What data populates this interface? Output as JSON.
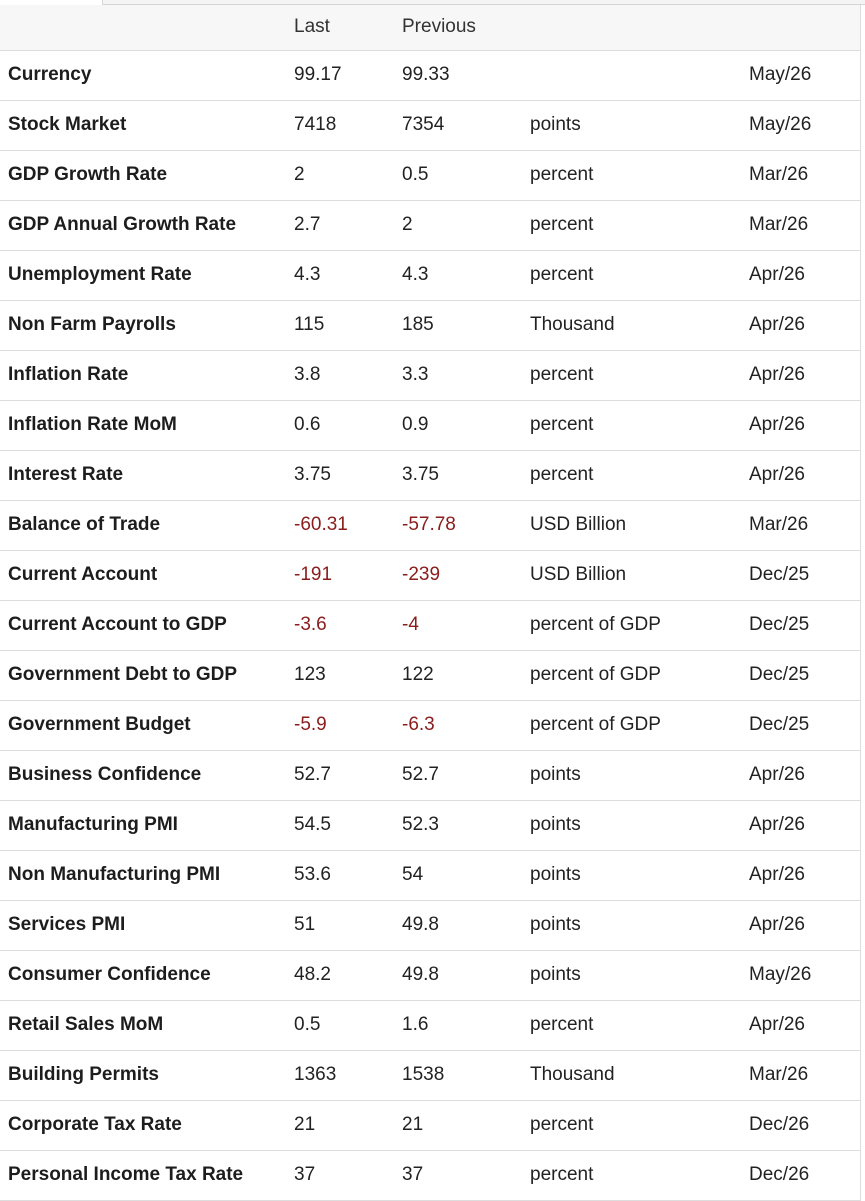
{
  "columns": {
    "name": "",
    "last": "Last",
    "previous": "Previous",
    "unit": "",
    "date": ""
  },
  "rows": [
    {
      "name": "Currency",
      "last": "99.17",
      "previous": "99.33",
      "unit": "",
      "date": "May/26"
    },
    {
      "name": "Stock Market",
      "last": "7418",
      "previous": "7354",
      "unit": "points",
      "date": "May/26"
    },
    {
      "name": "GDP Growth Rate",
      "last": "2",
      "previous": "0.5",
      "unit": "percent",
      "date": "Mar/26"
    },
    {
      "name": "GDP Annual Growth Rate",
      "last": "2.7",
      "previous": "2",
      "unit": "percent",
      "date": "Mar/26"
    },
    {
      "name": "Unemployment Rate",
      "last": "4.3",
      "previous": "4.3",
      "unit": "percent",
      "date": "Apr/26"
    },
    {
      "name": "Non Farm Payrolls",
      "last": "115",
      "previous": "185",
      "unit": "Thousand",
      "date": "Apr/26"
    },
    {
      "name": "Inflation Rate",
      "last": "3.8",
      "previous": "3.3",
      "unit": "percent",
      "date": "Apr/26"
    },
    {
      "name": "Inflation Rate MoM",
      "last": "0.6",
      "previous": "0.9",
      "unit": "percent",
      "date": "Apr/26"
    },
    {
      "name": "Interest Rate",
      "last": "3.75",
      "previous": "3.75",
      "unit": "percent",
      "date": "Apr/26"
    },
    {
      "name": "Balance of Trade",
      "last": "-60.31",
      "previous": "-57.78",
      "unit": "USD Billion",
      "date": "Mar/26"
    },
    {
      "name": "Current Account",
      "last": "-191",
      "previous": "-239",
      "unit": "USD Billion",
      "date": "Dec/25"
    },
    {
      "name": "Current Account to GDP",
      "last": "-3.6",
      "previous": "-4",
      "unit": "percent of GDP",
      "date": "Dec/25"
    },
    {
      "name": "Government Debt to GDP",
      "last": "123",
      "previous": "122",
      "unit": "percent of GDP",
      "date": "Dec/25"
    },
    {
      "name": "Government Budget",
      "last": "-5.9",
      "previous": "-6.3",
      "unit": "percent of GDP",
      "date": "Dec/25"
    },
    {
      "name": "Business Confidence",
      "last": "52.7",
      "previous": "52.7",
      "unit": "points",
      "date": "Apr/26"
    },
    {
      "name": "Manufacturing PMI",
      "last": "54.5",
      "previous": "52.3",
      "unit": "points",
      "date": "Apr/26"
    },
    {
      "name": "Non Manufacturing PMI",
      "last": "53.6",
      "previous": "54",
      "unit": "points",
      "date": "Apr/26"
    },
    {
      "name": "Services PMI",
      "last": "51",
      "previous": "49.8",
      "unit": "points",
      "date": "Apr/26"
    },
    {
      "name": "Consumer Confidence",
      "last": "48.2",
      "previous": "49.8",
      "unit": "points",
      "date": "May/26"
    },
    {
      "name": "Retail Sales MoM",
      "last": "0.5",
      "previous": "1.6",
      "unit": "percent",
      "date": "Apr/26"
    },
    {
      "name": "Building Permits",
      "last": "1363",
      "previous": "1538",
      "unit": "Thousand",
      "date": "Mar/26"
    },
    {
      "name": "Corporate Tax Rate",
      "last": "21",
      "previous": "21",
      "unit": "percent",
      "date": "Dec/26"
    },
    {
      "name": "Personal Income Tax Rate",
      "last": "37",
      "previous": "37",
      "unit": "percent",
      "date": "Dec/26"
    }
  ],
  "colors": {
    "negative_value": "#8a1c1c",
    "header_background": "#f7f7f7",
    "row_border": "#dddddd"
  }
}
